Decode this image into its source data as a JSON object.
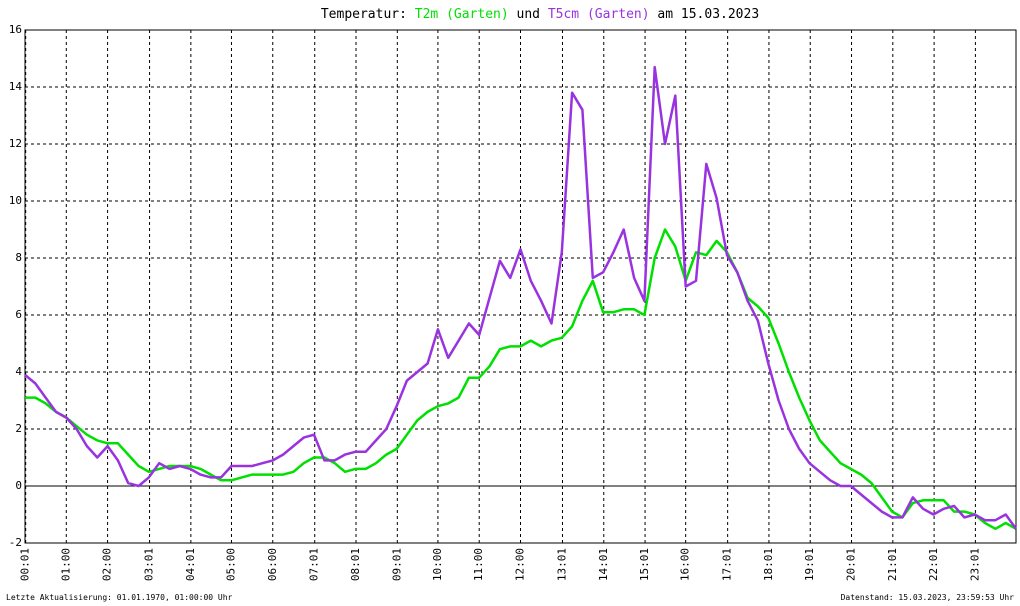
{
  "chart_data": {
    "type": "line",
    "title_prefix": "Temperatur:",
    "title_join": "und",
    "title_suffix": "am 15.03.2023",
    "footer_left": "Letzte Aktualisierung: 01.01.1970, 01:00:00 Uhr",
    "footer_right": "Datenstand: 15.03.2023, 23:59:53 Uhr",
    "xlim": [
      0,
      24
    ],
    "ylim": [
      -2,
      16
    ],
    "yticks": [
      -2,
      0,
      2,
      4,
      6,
      8,
      10,
      12,
      14,
      16
    ],
    "grid": true,
    "xticks": [
      {
        "value": 0.0167,
        "label": "00:01"
      },
      {
        "value": 1,
        "label": "01:00"
      },
      {
        "value": 2,
        "label": "02:00"
      },
      {
        "value": 3.0167,
        "label": "03:01"
      },
      {
        "value": 4.0167,
        "label": "04:01"
      },
      {
        "value": 5,
        "label": "05:00"
      },
      {
        "value": 6,
        "label": "06:00"
      },
      {
        "value": 7.0167,
        "label": "07:01"
      },
      {
        "value": 8.0167,
        "label": "08:01"
      },
      {
        "value": 9.0167,
        "label": "09:01"
      },
      {
        "value": 10,
        "label": "10:00"
      },
      {
        "value": 11,
        "label": "11:00"
      },
      {
        "value": 12,
        "label": "12:00"
      },
      {
        "value": 13.0167,
        "label": "13:01"
      },
      {
        "value": 14.0167,
        "label": "14:01"
      },
      {
        "value": 15.0167,
        "label": "15:01"
      },
      {
        "value": 16,
        "label": "16:00"
      },
      {
        "value": 17.0167,
        "label": "17:01"
      },
      {
        "value": 18.0167,
        "label": "18:01"
      },
      {
        "value": 19.0167,
        "label": "19:01"
      },
      {
        "value": 20.0167,
        "label": "20:01"
      },
      {
        "value": 21.0167,
        "label": "21:01"
      },
      {
        "value": 22.0167,
        "label": "22:01"
      },
      {
        "value": 23.0167,
        "label": "23:01"
      }
    ],
    "x": [
      0,
      0.25,
      0.5,
      0.75,
      1,
      1.25,
      1.5,
      1.75,
      2,
      2.25,
      2.5,
      2.75,
      3,
      3.25,
      3.5,
      3.75,
      4,
      4.25,
      4.5,
      4.75,
      5,
      5.25,
      5.5,
      5.75,
      6,
      6.25,
      6.5,
      6.75,
      7,
      7.25,
      7.5,
      7.75,
      8,
      8.25,
      8.5,
      8.75,
      9,
      9.25,
      9.5,
      9.75,
      10,
      10.25,
      10.5,
      10.75,
      11,
      11.25,
      11.5,
      11.75,
      12,
      12.25,
      12.5,
      12.75,
      13,
      13.25,
      13.5,
      13.75,
      14,
      14.25,
      14.5,
      14.75,
      15,
      15.25,
      15.5,
      15.75,
      16,
      16.25,
      16.5,
      16.75,
      17,
      17.25,
      17.5,
      17.75,
      18,
      18.25,
      18.5,
      18.75,
      19,
      19.25,
      19.5,
      19.75,
      20,
      20.25,
      20.5,
      20.75,
      21,
      21.25,
      21.5,
      21.75,
      22,
      22.25,
      22.5,
      22.75,
      23,
      23.25,
      23.5,
      23.75,
      24
    ],
    "series": [
      {
        "name": "T2m (Garten)",
        "color": "#00e000",
        "values": [
          3.1,
          3.1,
          2.9,
          2.6,
          2.4,
          2.1,
          1.8,
          1.6,
          1.5,
          1.5,
          1.1,
          0.7,
          0.5,
          0.6,
          0.7,
          0.7,
          0.7,
          0.6,
          0.4,
          0.2,
          0.2,
          0.3,
          0.4,
          0.4,
          0.4,
          0.4,
          0.5,
          0.8,
          1.0,
          1.0,
          0.8,
          0.5,
          0.6,
          0.6,
          0.8,
          1.1,
          1.3,
          1.8,
          2.3,
          2.6,
          2.8,
          2.9,
          3.1,
          3.8,
          3.8,
          4.2,
          4.8,
          4.9,
          4.9,
          5.1,
          4.9,
          5.1,
          5.2,
          5.6,
          6.5,
          7.2,
          6.1,
          6.1,
          6.2,
          6.2,
          6.0,
          8.0,
          9.0,
          8.4,
          7.2,
          8.2,
          8.1,
          8.6,
          8.2,
          7.5,
          6.6,
          6.3,
          5.9,
          5.0,
          4.0,
          3.1,
          2.3,
          1.6,
          1.2,
          0.8,
          0.6,
          0.4,
          0.1,
          -0.4,
          -0.9,
          -1.1,
          -0.6,
          -0.5,
          -0.5,
          -0.5,
          -0.9,
          -0.9,
          -1.0,
          -1.3,
          -1.5,
          -1.3,
          -1.5
        ]
      },
      {
        "name": "T5cm (Garten)",
        "color": "#9933e0",
        "values": [
          3.9,
          3.6,
          3.1,
          2.6,
          2.4,
          2.0,
          1.4,
          1.0,
          1.4,
          0.9,
          0.1,
          0.0,
          0.3,
          0.8,
          0.6,
          0.7,
          0.6,
          0.4,
          0.3,
          0.3,
          0.7,
          0.7,
          0.7,
          0.8,
          0.9,
          1.1,
          1.4,
          1.7,
          1.8,
          0.9,
          0.9,
          1.1,
          1.2,
          1.2,
          1.6,
          2.0,
          2.8,
          3.7,
          4.0,
          4.3,
          5.5,
          4.5,
          5.1,
          5.7,
          5.3,
          6.6,
          7.9,
          7.3,
          8.3,
          7.2,
          6.5,
          5.7,
          8.2,
          13.8,
          13.2,
          7.3,
          7.5,
          8.2,
          9.0,
          7.3,
          6.5,
          14.7,
          12.0,
          13.7,
          7.0,
          7.2,
          11.3,
          10.1,
          8.1,
          7.5,
          6.5,
          5.8,
          4.3,
          3.0,
          2.0,
          1.3,
          0.8,
          0.5,
          0.2,
          0.0,
          0.0,
          -0.3,
          -0.6,
          -0.9,
          -1.1,
          -1.1,
          -0.4,
          -0.8,
          -1.0,
          -0.8,
          -0.7,
          -1.1,
          -1.0,
          -1.2,
          -1.2,
          -1.0,
          -1.5
        ]
      }
    ]
  }
}
